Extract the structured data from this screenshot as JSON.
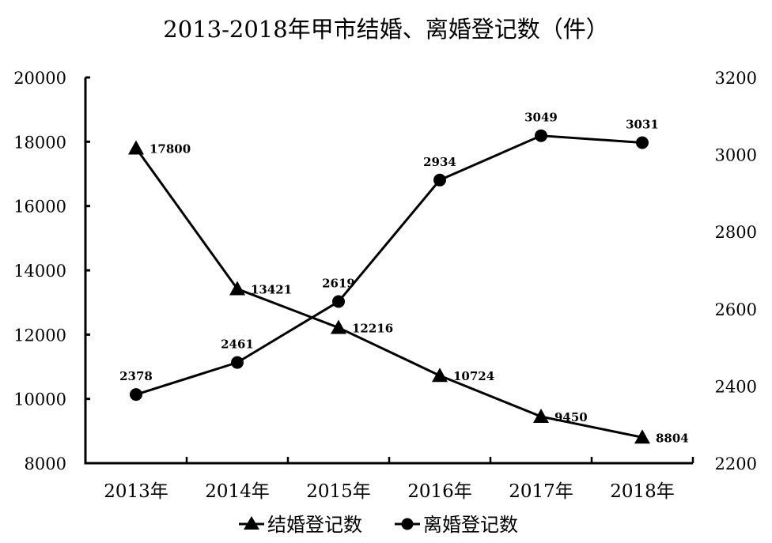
{
  "chart_data": {
    "type": "line",
    "title": "2013-2018年甲市结婚、离婚登记数（件）",
    "categories": [
      "2013年",
      "2014年",
      "2015年",
      "2016年",
      "2017年",
      "2018年"
    ],
    "series": [
      {
        "name": "结婚登记数",
        "marker": "triangle",
        "axis": "left",
        "values": [
          17800,
          13421,
          12216,
          10724,
          9450,
          8804
        ]
      },
      {
        "name": "离婚登记数",
        "marker": "circle",
        "axis": "right",
        "values": [
          2378,
          2461,
          2619,
          2934,
          3049,
          3031
        ]
      }
    ],
    "left_axis": {
      "ylim": [
        8000,
        20000
      ],
      "ticks": [
        "20000",
        "18000",
        "16000",
        "14000",
        "12000",
        "10000",
        "8000"
      ]
    },
    "right_axis": {
      "ylim": [
        2200,
        3200
      ],
      "ticks": [
        "3200",
        "3000",
        "2800",
        "2600",
        "2400",
        "2200"
      ]
    },
    "xlabel": "",
    "ylabel": "",
    "grid": false,
    "legend_position": "bottom",
    "colors": {
      "line": "#000000",
      "background": "#ffffff"
    }
  }
}
